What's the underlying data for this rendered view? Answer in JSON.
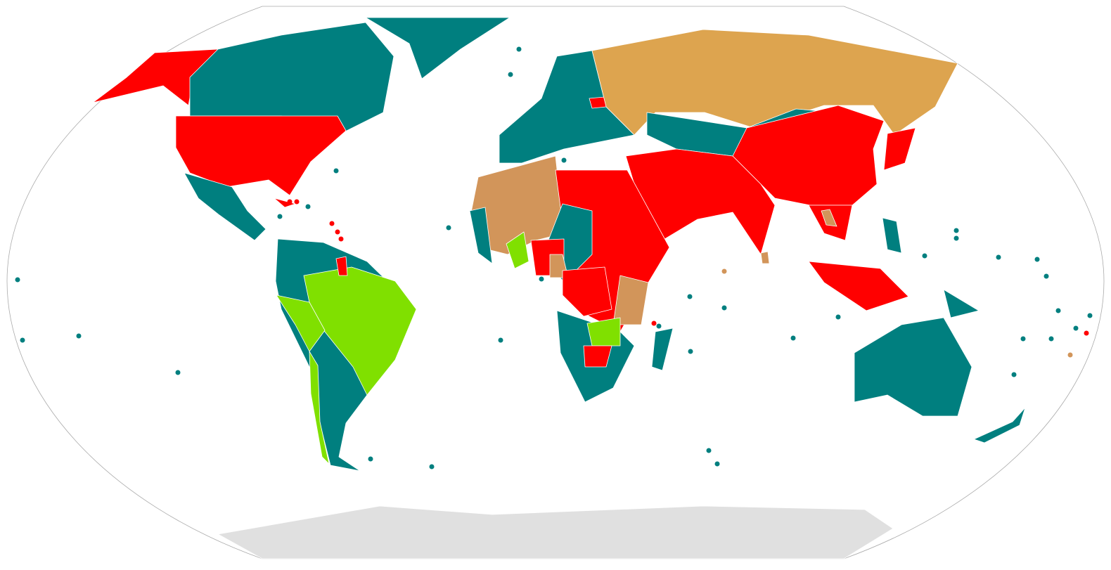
{
  "map": {
    "type": "world choropleth",
    "projection": "Robinson",
    "colors": {
      "teal": "#007f7f",
      "red": "#ff0000",
      "tan": "#d2955a",
      "tan_light": "#dda44f",
      "green": "#80e000",
      "antarctica": "#e0e0e0",
      "ocean": "#ffffff",
      "frame": "#aaaaaa"
    }
  }
}
